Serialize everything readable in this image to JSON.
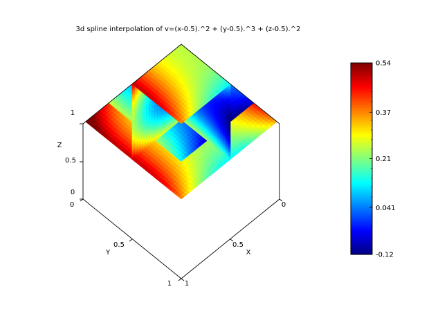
{
  "chart_data": {
    "type": "heatmap",
    "title": "3d spline interpolation of v=(x-0.5).^2 + (y-0.5).^3 + (z-0.5).^2",
    "xlabel": "X",
    "ylabel": "Y",
    "zlabel": "Z",
    "xlim": [
      0,
      1
    ],
    "ylim": [
      0,
      1
    ],
    "zlim": [
      0,
      1
    ],
    "x_ticks": [
      "0",
      "0.5",
      "1"
    ],
    "y_ticks": [
      "0",
      "0.5",
      "1"
    ],
    "z_ticks": [
      "0",
      "0.5",
      "1"
    ],
    "slices": {
      "z_planes": [
        0,
        0.5,
        1
      ],
      "x_planes": [
        0.5
      ],
      "y_planes": [
        0.5
      ]
    },
    "colorbar": {
      "min": -0.12,
      "max": 0.54,
      "tick_labels": [
        "0.54",
        "0.37",
        "0.21",
        "0.041",
        "-0.12"
      ],
      "tick_values": [
        0.54,
        0.37,
        0.21,
        0.041,
        -0.12
      ],
      "colormap": "jet"
    },
    "grid": false
  }
}
